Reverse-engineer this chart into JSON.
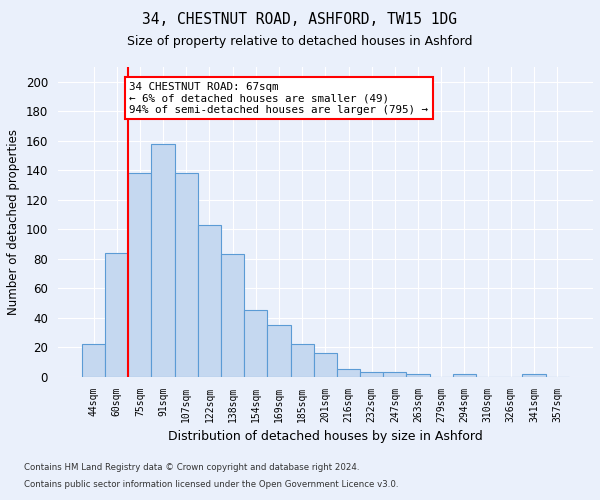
{
  "title1": "34, CHESTNUT ROAD, ASHFORD, TW15 1DG",
  "title2": "Size of property relative to detached houses in Ashford",
  "xlabel": "Distribution of detached houses by size in Ashford",
  "ylabel": "Number of detached properties",
  "bar_labels": [
    "44sqm",
    "60sqm",
    "75sqm",
    "91sqm",
    "107sqm",
    "122sqm",
    "138sqm",
    "154sqm",
    "169sqm",
    "185sqm",
    "201sqm",
    "216sqm",
    "232sqm",
    "247sqm",
    "263sqm",
    "279sqm",
    "294sqm",
    "310sqm",
    "326sqm",
    "341sqm",
    "357sqm"
  ],
  "bar_values": [
    22,
    84,
    138,
    158,
    138,
    103,
    83,
    45,
    35,
    22,
    16,
    5,
    3,
    3,
    2,
    0,
    2,
    0,
    0,
    2,
    0
  ],
  "bar_color": "#c5d8f0",
  "bar_edge_color": "#5b9bd5",
  "red_line_x": 1.5,
  "annotation_text": "34 CHESTNUT ROAD: 67sqm\n← 6% of detached houses are smaller (49)\n94% of semi-detached houses are larger (795) →",
  "annotation_box_color": "white",
  "annotation_box_edge": "red",
  "ylim": [
    0,
    210
  ],
  "yticks": [
    0,
    20,
    40,
    60,
    80,
    100,
    120,
    140,
    160,
    180,
    200
  ],
  "footer1": "Contains HM Land Registry data © Crown copyright and database right 2024.",
  "footer2": "Contains public sector information licensed under the Open Government Licence v3.0.",
  "bg_color": "#eaf0fb",
  "grid_color": "#ffffff"
}
